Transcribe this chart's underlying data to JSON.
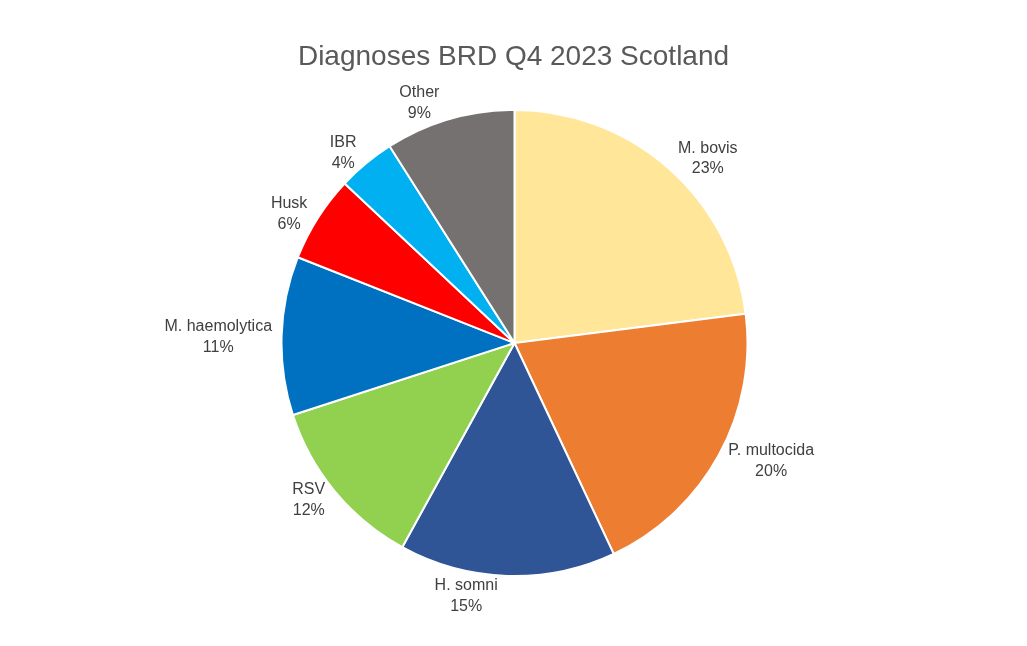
{
  "chart_data": {
    "type": "pie",
    "title": "Diagnoses BRD Q4 2023 Scotland",
    "categories": [
      "M. bovis",
      "P. multocida",
      "H. somni",
      "RSV",
      "M. haemolytica",
      "Husk",
      "IBR",
      "Other"
    ],
    "values": [
      23,
      20,
      15,
      12,
      11,
      6,
      4,
      9
    ],
    "value_labels": [
      "23%",
      "20%",
      "15%",
      "12%",
      "11%",
      "6%",
      "4%",
      "9%"
    ],
    "colors": [
      "#ffe699",
      "#ed7d31",
      "#2f5597",
      "#92d050",
      "#0070c0",
      "#ff0000",
      "#00b0f0",
      "#767171"
    ],
    "legend": false
  }
}
